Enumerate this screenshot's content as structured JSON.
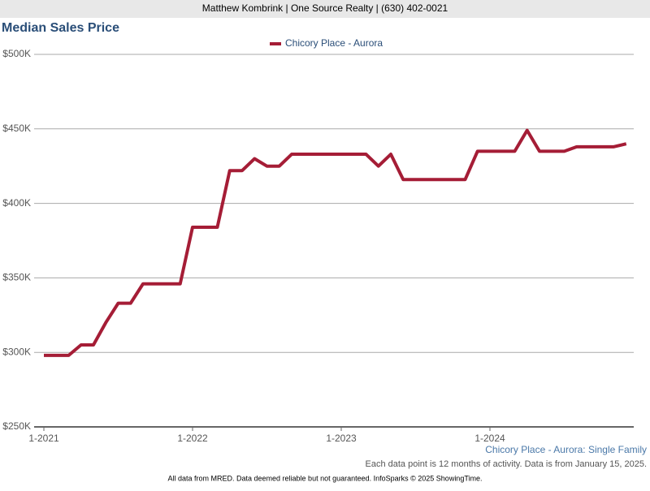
{
  "header": "Matthew Kombrink | One Source Realty | (630) 402-0021",
  "chart_data": {
    "type": "line",
    "title": "Median Sales Price",
    "categories": [
      "1-2021",
      null,
      null,
      null,
      null,
      null,
      null,
      null,
      null,
      null,
      null,
      null,
      "1-2022",
      null,
      null,
      null,
      null,
      null,
      null,
      null,
      null,
      null,
      null,
      null,
      "1-2023",
      null,
      null,
      null,
      null,
      null,
      null,
      null,
      null,
      null,
      null,
      null,
      "1-2024",
      null,
      null,
      null,
      null,
      null,
      null,
      null,
      null,
      null,
      null,
      null
    ],
    "series": [
      {
        "name": "Chicory Place - Aurora",
        "color": "#a51d36",
        "values": [
          298000,
          298000,
          298000,
          305000,
          305000,
          320000,
          333000,
          333000,
          346000,
          346000,
          346000,
          346000,
          384000,
          384000,
          384000,
          422000,
          422000,
          430000,
          425000,
          425000,
          433000,
          433000,
          433000,
          433000,
          433000,
          433000,
          433000,
          425000,
          433000,
          416000,
          416000,
          416000,
          416000,
          416000,
          416000,
          435000,
          435000,
          435000,
          435000,
          449000,
          435000,
          435000,
          435000,
          438000,
          438000,
          438000,
          438000,
          440000
        ]
      }
    ],
    "ylim": [
      250000,
      500000
    ],
    "yticks": [
      {
        "value": 250000,
        "label": "$250K"
      },
      {
        "value": 300000,
        "label": "$300K"
      },
      {
        "value": 350000,
        "label": "$350K"
      },
      {
        "value": 400000,
        "label": "$400K"
      },
      {
        "value": 450000,
        "label": "$450K"
      },
      {
        "value": 500000,
        "label": "$500K"
      }
    ],
    "grid": true,
    "legend": "top",
    "subtitle": "Chicory Place - Aurora: Single Family",
    "note": "Each data point is 12 months of activity. Data is from January 15, 2025."
  },
  "footer": "All data from MRED. Data deemed reliable but not guaranteed. InfoSparks © 2025 ShowingTime."
}
